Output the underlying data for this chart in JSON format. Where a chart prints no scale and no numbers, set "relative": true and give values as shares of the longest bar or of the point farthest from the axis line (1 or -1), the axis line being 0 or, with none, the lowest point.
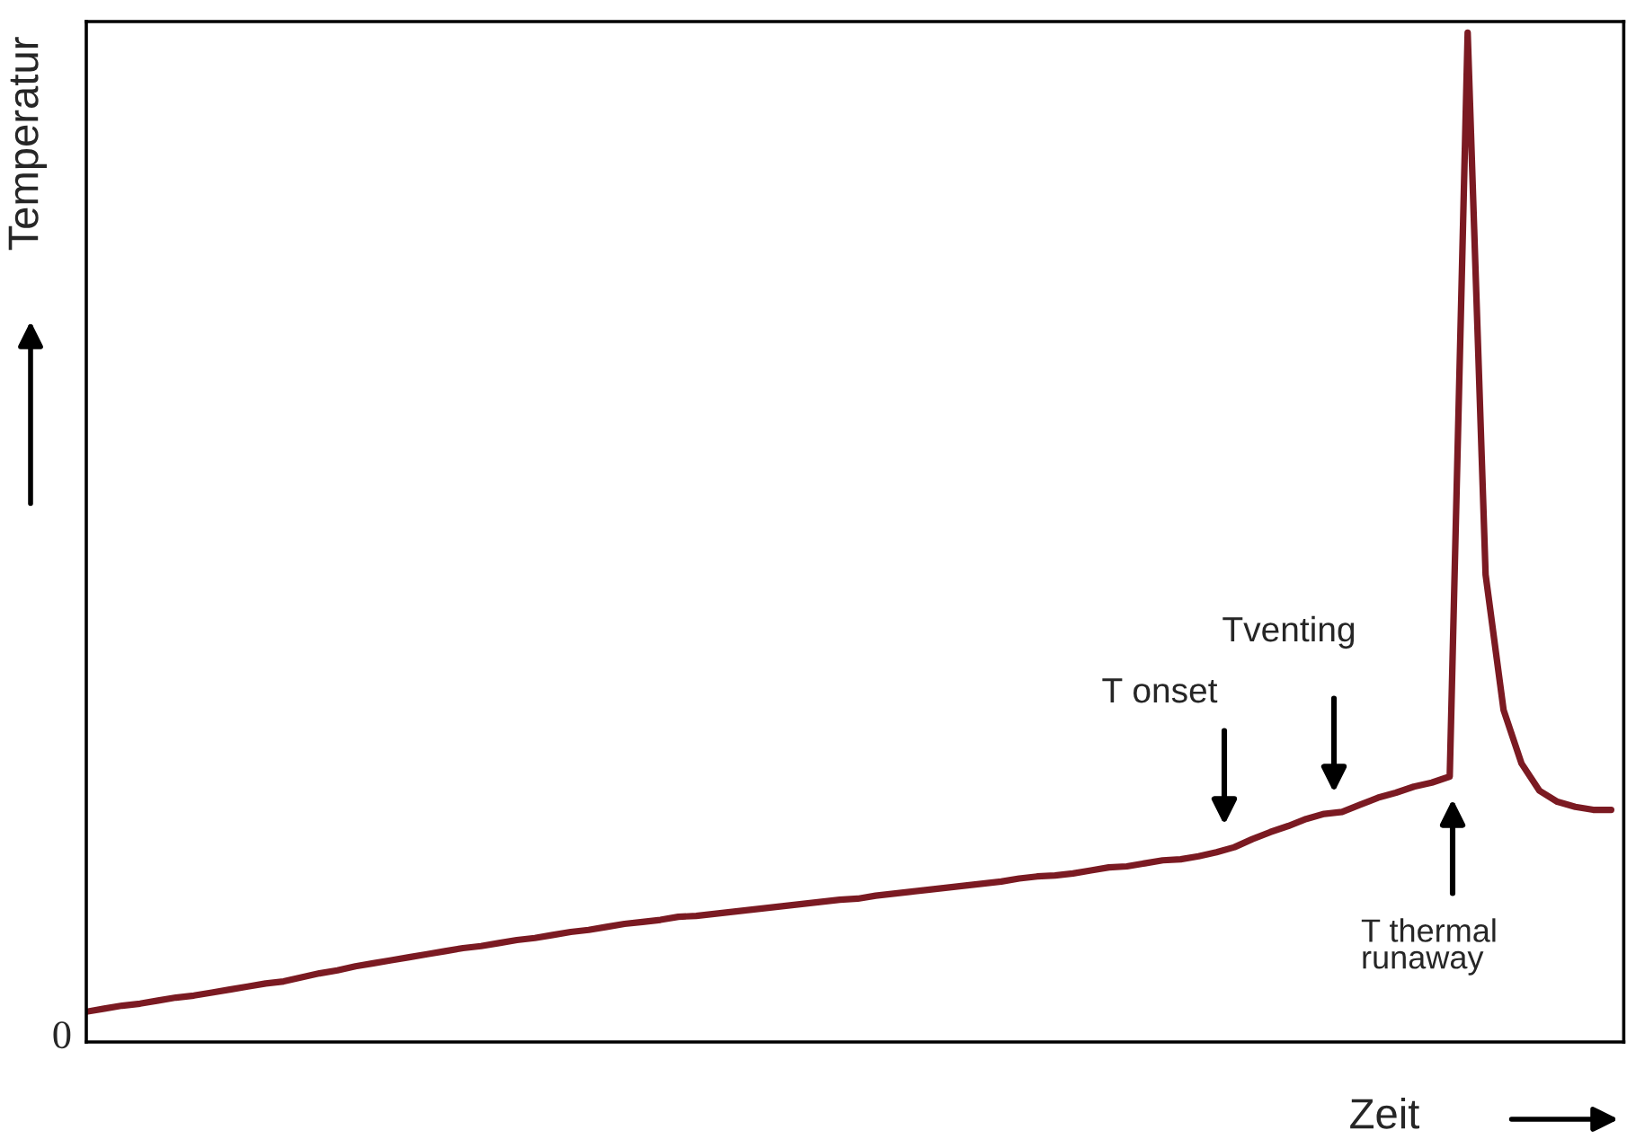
{
  "chart_data": {
    "type": "line",
    "relative": true,
    "xlabel": "Zeit",
    "ylabel": "Temperatur",
    "categories": [
      null,
      null,
      null,
      null,
      null,
      null,
      null,
      null,
      null,
      null,
      null,
      null,
      null,
      null,
      null,
      null,
      null,
      null,
      null,
      null,
      null,
      null,
      null,
      null,
      null,
      null,
      null,
      null,
      null,
      null,
      null,
      null,
      null,
      null,
      null,
      null,
      null,
      null,
      null,
      null,
      null,
      null,
      null,
      null,
      null,
      null,
      null,
      null,
      null,
      null,
      null,
      null,
      null,
      null,
      null,
      null,
      null,
      null,
      null,
      null,
      null,
      null,
      null,
      null,
      null,
      null,
      null,
      null,
      null,
      null,
      null,
      null,
      null,
      null,
      null,
      null,
      null,
      null,
      null,
      null,
      null,
      null,
      null,
      null,
      null,
      null
    ],
    "series": [
      {
        "color": "#7b1a22",
        "values": [
          0.03,
          0.033,
          0.036,
          0.038,
          0.041,
          0.044,
          0.046,
          0.049,
          0.052,
          0.055,
          0.058,
          0.06,
          0.064,
          0.068,
          0.071,
          0.075,
          0.078,
          0.081,
          0.084,
          0.087,
          0.09,
          0.093,
          0.095,
          0.098,
          0.101,
          0.103,
          0.106,
          0.109,
          0.111,
          0.114,
          0.117,
          0.119,
          0.121,
          0.124,
          0.125,
          0.127,
          0.129,
          0.131,
          0.133,
          0.135,
          0.137,
          0.139,
          0.141,
          0.142,
          0.145,
          0.147,
          0.149,
          0.151,
          0.153,
          0.155,
          0.157,
          0.159,
          0.162,
          0.164,
          0.165,
          0.167,
          0.17,
          0.173,
          0.174,
          0.177,
          0.18,
          0.181,
          0.184,
          0.188,
          0.193,
          0.201,
          0.208,
          0.214,
          0.221,
          0.226,
          0.228,
          0.235,
          0.242,
          0.247,
          0.253,
          0.257,
          0.263,
          1,
          0.463,
          0.329,
          0.276,
          0.249,
          0.238,
          0.233,
          0.23,
          0.23
        ]
      }
    ],
    "annotations": [
      "0",
      "T onset",
      "Tventing",
      "T thermal\nrunaway"
    ],
    "grid": false,
    "legend": false
  }
}
